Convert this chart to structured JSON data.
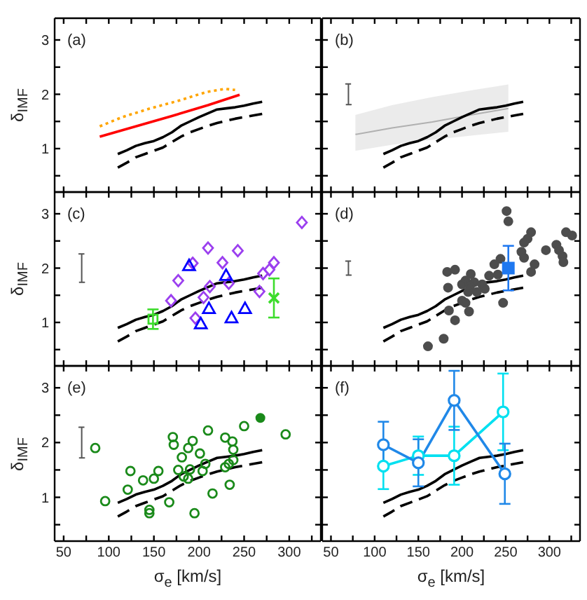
{
  "chart_data": [
    {
      "type": "line",
      "annotations": [
        "(a)"
      ],
      "ylabel": "δ$_{IMF}$",
      "tick_labels": "y",
      "xlim": [
        40,
        335
      ],
      "ylim": [
        0.2,
        3.4
      ],
      "xticks": [
        50,
        {
          "value": 75,
          "label": null
        },
        100,
        {
          "value": 125,
          "label": null
        },
        150,
        {
          "value": 175,
          "label": null
        },
        200,
        {
          "value": 225,
          "label": null
        },
        250,
        {
          "value": 275,
          "label": null
        },
        300,
        {
          "value": 325,
          "label": null
        }
      ],
      "yticks": [
        {
          "value": 0.5,
          "label": null
        },
        1,
        {
          "value": 1.5,
          "label": null
        },
        2,
        {
          "value": 2.5,
          "label": null
        },
        3
      ],
      "series": [
        {
          "color": "#000000",
          "line_style": "solid",
          "marker": "none",
          "x": [
            110,
            120,
            130,
            140,
            150,
            160,
            170,
            180,
            190,
            200,
            210,
            220,
            230,
            240,
            250,
            260,
            270
          ],
          "values": [
            0.9,
            0.97,
            1.05,
            1.1,
            1.14,
            1.21,
            1.3,
            1.42,
            1.5,
            1.58,
            1.65,
            1.72,
            1.74,
            1.76,
            1.79,
            1.83,
            1.86
          ]
        },
        {
          "color": "#000000",
          "line_style": "dashed",
          "marker": "none",
          "x": [
            110,
            120,
            130,
            140,
            150,
            160,
            170,
            180,
            190,
            200,
            210,
            220,
            230,
            240,
            250,
            260,
            270
          ],
          "values": [
            0.65,
            0.74,
            0.84,
            0.9,
            0.96,
            1.02,
            1.12,
            1.22,
            1.3,
            1.36,
            1.42,
            1.47,
            1.51,
            1.55,
            1.58,
            1.61,
            1.64
          ]
        },
        {
          "color": "#ff0000",
          "line_style": "solid",
          "marker": "none",
          "x": [
            90,
            130,
            170,
            210,
            245
          ],
          "values": [
            1.22,
            1.41,
            1.6,
            1.8,
            1.99
          ]
        },
        {
          "color": "#ffa500",
          "line_style": "dotted",
          "marker": "none",
          "x": [
            90,
            115,
            146,
            177,
            208,
            229,
            240
          ],
          "values": [
            1.41,
            1.58,
            1.74,
            1.88,
            2.04,
            2.1,
            2.08
          ]
        }
      ]
    },
    {
      "type": "line",
      "annotations": [
        "(b)"
      ],
      "tick_labels": false,
      "xlim": [
        40,
        335
      ],
      "ylim": [
        0.2,
        3.4
      ],
      "xticks": [
        50,
        {
          "value": 75,
          "label": null
        },
        100,
        {
          "value": 125,
          "label": null
        },
        150,
        {
          "value": 175,
          "label": null
        },
        200,
        {
          "value": 225,
          "label": null
        },
        250,
        {
          "value": 275,
          "label": null
        },
        300,
        {
          "value": 325,
          "label": null
        }
      ],
      "yticks": [
        {
          "value": 0.5,
          "label": null
        },
        1,
        {
          "value": 1.5,
          "label": null
        },
        2,
        {
          "value": 2.5,
          "label": null
        },
        3
      ],
      "series": [
        {
          "color": "#b0b0b0",
          "line_style": "solid",
          "marker": "none",
          "x": [
            78,
            120,
            166,
            210,
            253
          ],
          "values": [
            1.26,
            1.38,
            1.49,
            1.62,
            1.74
          ],
          "lower": [
            0.96,
            1.07,
            1.16,
            1.24,
            1.31
          ],
          "upper": [
            1.62,
            1.8,
            1.95,
            2.07,
            2.18
          ]
        },
        {
          "color": "#555555",
          "line_style": "solid",
          "marker": "none",
          "x": [
            67,
            73,
            70,
            70,
            67,
            73
          ],
          "values": [
            1.81,
            1.81,
            1.81,
            2.19,
            2.19,
            2.19
          ]
        },
        {
          "color": "#000000",
          "line_style": "solid",
          "marker": "none",
          "x": [
            110,
            120,
            130,
            140,
            150,
            160,
            170,
            180,
            190,
            200,
            210,
            220,
            230,
            240,
            250,
            260,
            270
          ],
          "values": [
            0.9,
            0.97,
            1.05,
            1.1,
            1.14,
            1.21,
            1.3,
            1.42,
            1.5,
            1.58,
            1.65,
            1.72,
            1.74,
            1.76,
            1.79,
            1.83,
            1.86
          ]
        },
        {
          "color": "#000000",
          "line_style": "dashed",
          "marker": "none",
          "x": [
            110,
            120,
            130,
            140,
            150,
            160,
            170,
            180,
            190,
            200,
            210,
            220,
            230,
            240,
            250,
            260,
            270
          ],
          "values": [
            0.65,
            0.74,
            0.84,
            0.9,
            0.96,
            1.02,
            1.12,
            1.22,
            1.3,
            1.36,
            1.42,
            1.47,
            1.51,
            1.55,
            1.58,
            1.61,
            1.64
          ]
        }
      ]
    },
    {
      "type": "scatter",
      "annotations": [
        "(c)"
      ],
      "ylabel": "δ$_{IMF}$",
      "tick_labels": "y",
      "xlim": [
        40,
        335
      ],
      "ylim": [
        0.2,
        3.4
      ],
      "xticks": [
        50,
        {
          "value": 75,
          "label": null
        },
        100,
        {
          "value": 125,
          "label": null
        },
        150,
        {
          "value": 175,
          "label": null
        },
        200,
        {
          "value": 225,
          "label": null
        },
        250,
        {
          "value": 275,
          "label": null
        },
        300,
        {
          "value": 325,
          "label": null
        }
      ],
      "yticks": [
        {
          "value": 0.5,
          "label": null
        },
        1,
        {
          "value": 1.5,
          "label": null
        },
        2,
        {
          "value": 2.5,
          "label": null
        },
        3
      ],
      "series": [
        {
          "type": "line",
          "color": "#555555",
          "line_style": "solid",
          "marker": "none",
          "x": [
            67,
            73,
            70,
            70,
            67,
            73
          ],
          "values": [
            1.74,
            1.74,
            1.74,
            2.26,
            2.26,
            2.26
          ]
        },
        {
          "type": "line",
          "color": "#000000",
          "line_style": "solid",
          "marker": "none",
          "x": [
            110,
            120,
            130,
            140,
            150,
            160,
            170,
            180,
            190,
            200,
            210,
            220,
            230,
            240,
            250,
            260,
            270
          ],
          "values": [
            0.9,
            0.97,
            1.05,
            1.1,
            1.14,
            1.21,
            1.3,
            1.42,
            1.5,
            1.58,
            1.65,
            1.72,
            1.74,
            1.76,
            1.79,
            1.83,
            1.86
          ]
        },
        {
          "type": "line",
          "color": "#000000",
          "line_style": "dashed",
          "marker": "none",
          "x": [
            110,
            120,
            130,
            140,
            150,
            160,
            170,
            180,
            190,
            200,
            210,
            220,
            230,
            240,
            250,
            260,
            270
          ],
          "values": [
            0.65,
            0.74,
            0.84,
            0.9,
            0.96,
            1.02,
            1.12,
            1.22,
            1.3,
            1.36,
            1.42,
            1.47,
            1.51,
            1.55,
            1.58,
            1.61,
            1.64
          ]
        },
        {
          "color": "#9b3fef",
          "marker": "diamond",
          "x": [
            314,
            210,
            243,
            193,
            226,
            283,
            278,
            271,
            177,
            233,
            212,
            267,
            205,
            169,
            196
          ],
          "values": [
            2.84,
            2.37,
            2.32,
            2.09,
            2.1,
            2.1,
            1.97,
            1.9,
            1.77,
            1.72,
            1.66,
            1.57,
            1.46,
            1.4,
            1.08
          ]
        },
        {
          "color": "#0000ff",
          "marker": "triangle",
          "x": [
            189,
            230,
            211,
            251,
            236,
            202
          ],
          "values": [
            2.04,
            1.86,
            1.25,
            1.25,
            1.08,
            0.97
          ]
        },
        {
          "color": "#3ddc2c",
          "marker": "square",
          "x": [
            149
          ],
          "values": [
            1.06
          ],
          "errors": [
            0.18
          ]
        },
        {
          "color": "#3ddc2c",
          "marker": "cross",
          "x": [
            283
          ],
          "values": [
            1.45
          ],
          "errors": [
            0.36
          ]
        }
      ]
    },
    {
      "type": "scatter",
      "annotations": [
        "(d)"
      ],
      "tick_labels": false,
      "xlim": [
        40,
        335
      ],
      "ylim": [
        0.2,
        3.4
      ],
      "xticks": [
        50,
        {
          "value": 75,
          "label": null
        },
        100,
        {
          "value": 125,
          "label": null
        },
        150,
        {
          "value": 175,
          "label": null
        },
        200,
        {
          "value": 225,
          "label": null
        },
        250,
        {
          "value": 275,
          "label": null
        },
        300,
        {
          "value": 325,
          "label": null
        }
      ],
      "yticks": [
        {
          "value": 0.5,
          "label": null
        },
        1,
        {
          "value": 1.5,
          "label": null
        },
        2,
        {
          "value": 2.5,
          "label": null
        },
        3
      ],
      "series": [
        {
          "type": "line",
          "color": "#555555",
          "line_style": "solid",
          "marker": "none",
          "x": [
            67,
            73,
            70,
            70,
            67,
            73
          ],
          "values": [
            1.87,
            1.87,
            1.87,
            2.13,
            2.13,
            2.13
          ]
        },
        {
          "type": "line",
          "color": "#000000",
          "line_style": "solid",
          "marker": "none",
          "x": [
            110,
            120,
            130,
            140,
            150,
            160,
            170,
            180,
            190,
            200,
            210,
            220,
            230,
            240,
            250,
            260,
            270
          ],
          "values": [
            0.9,
            0.97,
            1.05,
            1.1,
            1.14,
            1.21,
            1.3,
            1.42,
            1.5,
            1.58,
            1.65,
            1.72,
            1.74,
            1.76,
            1.79,
            1.83,
            1.86
          ]
        },
        {
          "type": "line",
          "color": "#000000",
          "line_style": "dashed",
          "marker": "none",
          "x": [
            110,
            120,
            130,
            140,
            150,
            160,
            170,
            180,
            190,
            200,
            210,
            220,
            230,
            240,
            250,
            260,
            270
          ],
          "values": [
            0.65,
            0.74,
            0.84,
            0.9,
            0.96,
            1.02,
            1.12,
            1.22,
            1.3,
            1.36,
            1.42,
            1.47,
            1.51,
            1.55,
            1.58,
            1.61,
            1.64
          ]
        },
        {
          "color": "#4d4d4d",
          "marker": "circle",
          "x": [
            251,
            253,
            319,
            326,
            279,
            275,
            271,
            308,
            296,
            311,
            268,
            315,
            316,
            271,
            244,
            237,
            283,
            183,
            192,
            210,
            231,
            241,
            279,
            204,
            214,
            200,
            184,
            209,
            223,
            226,
            207,
            217,
            200,
            204,
            185,
            208,
            247,
            192,
            179,
            161
          ],
          "values": [
            3.05,
            2.86,
            2.66,
            2.6,
            2.66,
            2.54,
            2.47,
            2.43,
            2.33,
            2.33,
            2.3,
            2.22,
            2.11,
            2.19,
            2.17,
            2.07,
            2.07,
            1.93,
            1.97,
            1.89,
            1.86,
            1.88,
            1.93,
            1.77,
            1.74,
            1.7,
            1.64,
            1.66,
            1.7,
            1.62,
            1.56,
            1.56,
            1.4,
            1.36,
            1.22,
            1.2,
            1.36,
            1.04,
            0.7,
            0.56
          ]
        },
        {
          "color": "#1f78f0",
          "marker": "square",
          "x": [
            253
          ],
          "values": [
            2.0
          ],
          "errors": [
            0.41
          ]
        }
      ]
    },
    {
      "type": "scatter",
      "annotations": [
        "(e)"
      ],
      "ylabel": "δ$_{IMF}$",
      "xlabel": "σ$_{e}$ [km/s]",
      "xlim": [
        40,
        335
      ],
      "ylim": [
        0.2,
        3.4
      ],
      "xticks": [
        50,
        {
          "value": 75,
          "label": null
        },
        100,
        {
          "value": 125,
          "label": null
        },
        150,
        {
          "value": 175,
          "label": null
        },
        200,
        {
          "value": 225,
          "label": null
        },
        250,
        {
          "value": 275,
          "label": null
        },
        300,
        {
          "value": 325,
          "label": null
        }
      ],
      "yticks": [
        {
          "value": 0.5,
          "label": null
        },
        1,
        {
          "value": 1.5,
          "label": null
        },
        2,
        {
          "value": 2.5,
          "label": null
        },
        3
      ],
      "series": [
        {
          "type": "line",
          "color": "#555555",
          "line_style": "solid",
          "marker": "none",
          "x": [
            67,
            73,
            70,
            70,
            67,
            73
          ],
          "values": [
            1.72,
            1.72,
            1.72,
            2.28,
            2.28,
            2.28
          ]
        },
        {
          "type": "line",
          "color": "#000000",
          "line_style": "solid",
          "marker": "none",
          "x": [
            110,
            120,
            130,
            140,
            150,
            160,
            170,
            180,
            190,
            200,
            210,
            220,
            230,
            240,
            250,
            260,
            270
          ],
          "values": [
            0.9,
            0.97,
            1.05,
            1.1,
            1.14,
            1.21,
            1.3,
            1.42,
            1.5,
            1.58,
            1.65,
            1.72,
            1.74,
            1.76,
            1.79,
            1.83,
            1.86
          ]
        },
        {
          "type": "line",
          "color": "#000000",
          "line_style": "dashed",
          "marker": "none",
          "x": [
            110,
            120,
            130,
            140,
            150,
            160,
            170,
            180,
            190,
            200,
            210,
            220,
            230,
            240,
            250,
            260,
            270
          ],
          "values": [
            0.65,
            0.74,
            0.84,
            0.9,
            0.96,
            1.02,
            1.12,
            1.22,
            1.3,
            1.36,
            1.42,
            1.47,
            1.51,
            1.55,
            1.58,
            1.61,
            1.64
          ]
        },
        {
          "color": "#1a8a1a",
          "marker": "circle",
          "x": [
            85,
            96,
            124,
            121,
            138,
            155,
            150,
            145,
            145,
            167,
            171,
            172,
            177,
            181,
            188,
            193,
            183,
            190,
            188,
            201,
            204,
            207,
            210,
            215,
            195,
            229,
            237,
            238,
            229,
            233,
            238,
            234,
            250,
            296
          ],
          "values": [
            1.9,
            0.93,
            1.48,
            1.14,
            1.31,
            1.48,
            1.34,
            0.77,
            0.71,
            0.91,
            2.1,
            1.96,
            1.5,
            1.73,
            1.9,
            2.03,
            1.38,
            1.51,
            1.34,
            1.8,
            1.48,
            1.61,
            2.22,
            1.07,
            0.71,
            2.09,
            2.02,
            1.87,
            1.55,
            1.61,
            1.68,
            1.23,
            2.3,
            2.15
          ]
        },
        {
          "color": "#1a8a1a",
          "marker": "circle",
          "x": [
            268
          ],
          "values": [
            2.45
          ]
        }
      ]
    },
    {
      "type": "line",
      "annotations": [
        "(f)"
      ],
      "xlabel": "σ$_{e}$ [km/s]",
      "tick_labels": "x",
      "xlim": [
        40,
        335
      ],
      "ylim": [
        0.2,
        3.4
      ],
      "xticks": [
        50,
        {
          "value": 75,
          "label": null
        },
        100,
        {
          "value": 125,
          "label": null
        },
        150,
        {
          "value": 175,
          "label": null
        },
        200,
        {
          "value": 225,
          "label": null
        },
        250,
        {
          "value": 275,
          "label": null
        },
        300,
        {
          "value": 325,
          "label": null
        }
      ],
      "yticks": [
        {
          "value": 0.5,
          "label": null
        },
        1,
        {
          "value": 1.5,
          "label": null
        },
        2,
        {
          "value": 2.5,
          "label": null
        },
        3
      ],
      "series": [
        {
          "color": "#000000",
          "line_style": "solid",
          "marker": "none",
          "x": [
            110,
            120,
            130,
            140,
            150,
            160,
            170,
            180,
            190,
            200,
            210,
            220,
            230,
            240,
            250,
            260,
            270
          ],
          "values": [
            0.9,
            0.97,
            1.05,
            1.1,
            1.14,
            1.21,
            1.3,
            1.42,
            1.5,
            1.58,
            1.65,
            1.72,
            1.74,
            1.76,
            1.79,
            1.83,
            1.86
          ]
        },
        {
          "color": "#000000",
          "line_style": "dashed",
          "marker": "none",
          "x": [
            110,
            120,
            130,
            140,
            150,
            160,
            170,
            180,
            190,
            200,
            210,
            220,
            230,
            240,
            250,
            260,
            270
          ],
          "values": [
            0.65,
            0.74,
            0.84,
            0.9,
            0.96,
            1.02,
            1.12,
            1.22,
            1.3,
            1.36,
            1.42,
            1.47,
            1.51,
            1.55,
            1.58,
            1.61,
            1.64
          ]
        },
        {
          "color": "#00e0f0",
          "line_style": "solid",
          "marker": "circle",
          "x": [
            110,
            150,
            191,
            247
          ],
          "values": [
            1.57,
            1.76,
            1.76,
            2.56
          ],
          "errors": [
            0.42,
            0.35,
            0.53,
            0.7
          ]
        },
        {
          "color": "#2088e8",
          "line_style": "solid",
          "marker": "circle",
          "x": [
            110,
            150,
            191,
            249
          ],
          "values": [
            1.96,
            1.63,
            2.77,
            1.43
          ],
          "errors": [
            0.42,
            0.43,
            0.54,
            0.55
          ]
        }
      ]
    }
  ]
}
